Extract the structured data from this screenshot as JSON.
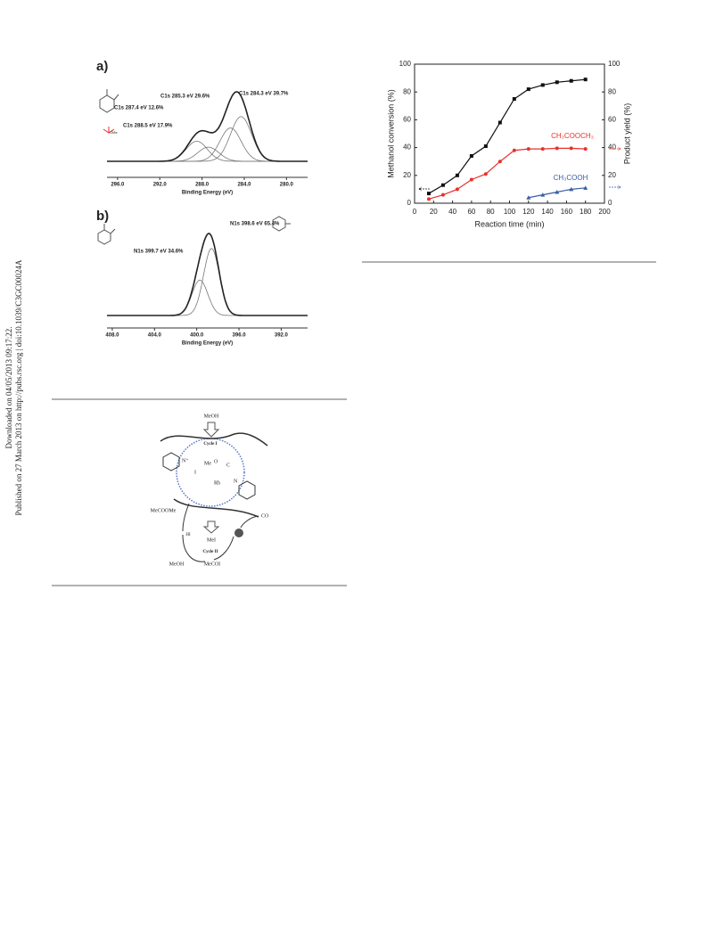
{
  "sidebar": {
    "lines": [
      "Downloaded on 04/05/2013 09:17:22.",
      "Published on 27 March 2013 on http://pubs.rsc.org | doi:10.1039/C3GC00024A"
    ]
  },
  "xps": [
    {
      "panel": "a)",
      "xlabel": "Binding Energy (eV)",
      "xlim": [
        297,
        278
      ],
      "xticks": [
        {
          "value": 296,
          "label": "296.0"
        },
        {
          "value": 292,
          "label": "292.0"
        },
        {
          "value": 288,
          "label": "288.0"
        },
        {
          "value": 284,
          "label": "284.0"
        },
        {
          "value": 280,
          "label": "280.0"
        }
      ],
      "peaks": [
        {
          "label": "C1s 287.4 eV 12.6%",
          "center": 287.4,
          "area": 12.6
        },
        {
          "label": "C1s 285.3 eV 29.6%",
          "center": 285.3,
          "area": 29.6
        },
        {
          "label": "C1s 284.3 eV 39.7%",
          "center": 284.3,
          "area": 39.7
        },
        {
          "label": "C1s 288.5 eV 17.9%",
          "center": 288.5,
          "area": 17.9
        }
      ],
      "annotation": "OMe"
    },
    {
      "panel": "b)",
      "xlabel": "Binding Energy (eV)",
      "xlim": [
        408.5,
        389.5
      ],
      "xticks": [
        {
          "value": 408,
          "label": "408.0"
        },
        {
          "value": 404,
          "label": "404.0"
        },
        {
          "value": 400,
          "label": "400.0"
        },
        {
          "value": 396,
          "label": "396.0"
        },
        {
          "value": 392,
          "label": "392.0"
        }
      ],
      "peaks": [
        {
          "label": "N1s 398.6 eV 65.4%",
          "center": 398.6,
          "area": 65.4
        },
        {
          "label": "N1s 399.7 eV 34.6%",
          "center": 399.7,
          "area": 34.6
        }
      ]
    }
  ],
  "chart_data": {
    "type": "line",
    "xlabel": "Reaction time (min)",
    "ylabel": "Methanol conversion (%)",
    "y2label": "Product yield (%)",
    "x": [
      15,
      30,
      45,
      60,
      75,
      90,
      105,
      120,
      135,
      150,
      165,
      180
    ],
    "xlim": [
      0,
      200
    ],
    "xticks": [
      0,
      20,
      40,
      60,
      80,
      100,
      120,
      140,
      160,
      180,
      200
    ],
    "ylim": [
      0,
      100
    ],
    "yticks": [
      0,
      20,
      40,
      60,
      80,
      100
    ],
    "y2lim": [
      0,
      100
    ],
    "y2ticks": [
      0,
      20,
      40,
      60,
      80,
      100
    ],
    "series": [
      {
        "color": "#111111",
        "marker": "square",
        "values": [
          7,
          13,
          20,
          34,
          41,
          58,
          75,
          82,
          85,
          87,
          88,
          89
        ]
      },
      {
        "name": "CH₃COOCH₃",
        "color": "#e8312a",
        "marker": "circle",
        "axis": "y2",
        "values": [
          3,
          6,
          10,
          17,
          21,
          30,
          38,
          39,
          39,
          39.5,
          39.5,
          39
        ]
      },
      {
        "name": "CH₃COOH",
        "color": "#3a5ca8",
        "marker": "triangle",
        "axis": "y2",
        "values": [
          null,
          null,
          null,
          null,
          null,
          null,
          null,
          4,
          6,
          8,
          10,
          11
        ]
      }
    ]
  },
  "scheme": {
    "top": "MeOH",
    "cycle1": "Cycle I",
    "mei": "MeI",
    "cycle2": "Cycle II",
    "co": "CO",
    "ester": "MeCOOMe",
    "hi": "HI",
    "meoh": "MeOH",
    "mecoi": "MeCOI",
    "me": "Me",
    "iodide": "I",
    "rh": "Rh",
    "o": "O",
    "c": "C",
    "n": "N",
    "nplus": "N⁺"
  }
}
